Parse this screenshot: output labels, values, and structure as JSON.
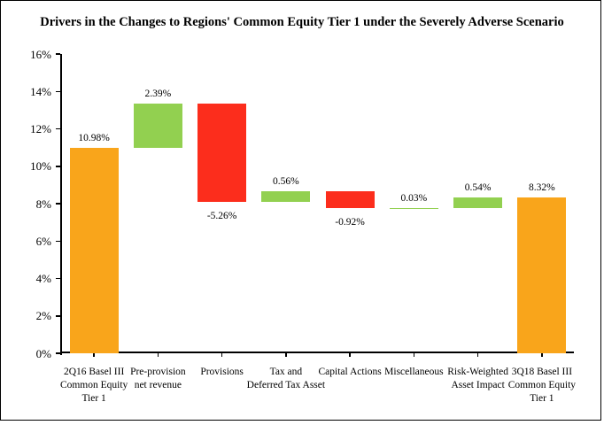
{
  "page": {
    "background_color": "#ffffff",
    "frame_border_color": "#000000"
  },
  "chart_data": {
    "type": "bar",
    "subtype": "waterfall",
    "title": "Drivers in the Changes to Regions' Common Equity Tier 1 under the Severely Adverse Scenario",
    "xlabel": "",
    "ylabel": "",
    "ylim": [
      0,
      16
    ],
    "ytick_step": 2,
    "yticks": [
      "0%",
      "2%",
      "4%",
      "6%",
      "8%",
      "10%",
      "12%",
      "14%",
      "16%"
    ],
    "grid": "off",
    "legend": "none",
    "colors": {
      "start_end": "#F9A51B",
      "increase": "#92D050",
      "decrease": "#FC2D1C"
    },
    "categories": [
      "2Q16 Basel III\nCommon Equity\nTier 1",
      "Pre-provision\nnet revenue",
      "Provisions",
      "Tax and\nDeferred Tax Asset",
      "Capital Actions",
      "Miscellaneous",
      "Risk-Weighted\nAsset Impact",
      "3Q18 Basel III\nCommon Equity\nTier 1"
    ],
    "values": [
      10.98,
      2.39,
      -5.26,
      0.56,
      -0.92,
      0.03,
      0.54,
      8.32
    ],
    "value_labels": [
      "10.98%",
      "2.39%",
      "-5.26%",
      "0.56%",
      "-0.92%",
      "0.03%",
      "0.54%",
      "8.32%"
    ],
    "segments": [
      {
        "category": "2Q16 Basel III\nCommon Equity\nTier 1",
        "value": 10.98,
        "label": "10.98%",
        "start": 0,
        "end": 10.98,
        "kind": "start_end"
      },
      {
        "category": "Pre-provision\nnet revenue",
        "value": 2.39,
        "label": "2.39%",
        "start": 10.98,
        "end": 13.37,
        "kind": "increase"
      },
      {
        "category": "Provisions",
        "value": -5.26,
        "label": "-5.26%",
        "start": 13.37,
        "end": 8.11,
        "kind": "decrease"
      },
      {
        "category": "Tax and\nDeferred Tax Asset",
        "value": 0.56,
        "label": "0.56%",
        "start": 8.11,
        "end": 8.67,
        "kind": "increase"
      },
      {
        "category": "Capital Actions",
        "value": -0.92,
        "label": "-0.92%",
        "start": 8.67,
        "end": 7.75,
        "kind": "decrease"
      },
      {
        "category": "Miscellaneous",
        "value": 0.03,
        "label": "0.03%",
        "start": 7.75,
        "end": 7.78,
        "kind": "increase"
      },
      {
        "category": "Risk-Weighted\nAsset Impact",
        "value": 0.54,
        "label": "0.54%",
        "start": 7.78,
        "end": 8.32,
        "kind": "increase"
      },
      {
        "category": "3Q18 Basel III\nCommon Equity\nTier 1",
        "value": 8.32,
        "label": "8.32%",
        "start": 0,
        "end": 8.32,
        "kind": "start_end"
      }
    ]
  }
}
